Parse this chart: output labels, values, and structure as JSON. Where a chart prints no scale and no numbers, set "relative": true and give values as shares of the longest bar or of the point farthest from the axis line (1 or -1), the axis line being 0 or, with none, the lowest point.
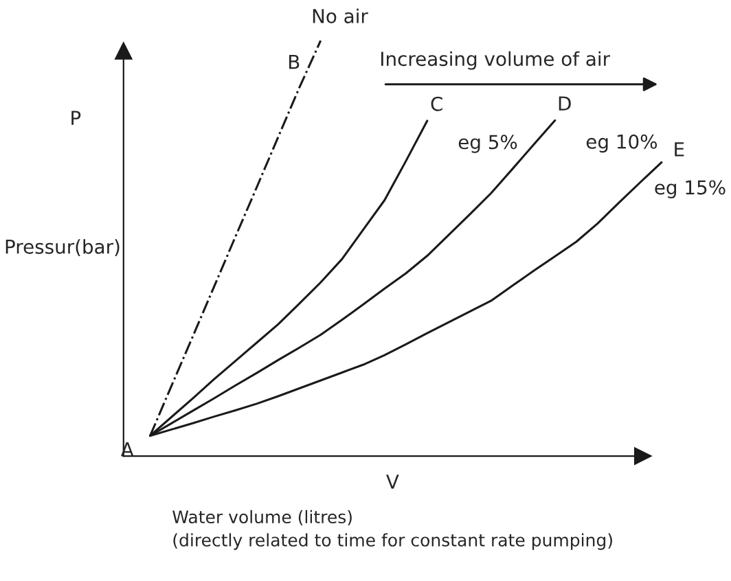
{
  "chart_data": {
    "type": "line",
    "relative": true,
    "xlabel": "V",
    "ylabel": "Pressur(bar)",
    "legend": false,
    "marker": "none",
    "categories": [
      null,
      null,
      null,
      null,
      null,
      null,
      null,
      null,
      null,
      null,
      null,
      null,
      null,
      null,
      null,
      null,
      null,
      null,
      null,
      null,
      null,
      null,
      null,
      null,
      null
    ],
    "series": [
      {
        "color": "#1a1a1a",
        "line_style": "dashdot",
        "values": [
          0.049,
          0.169,
          0.288,
          0.408,
          0.528,
          0.647,
          0.767,
          0.887,
          1.0,
          null,
          null,
          null,
          null,
          null,
          null,
          null,
          null,
          null,
          null,
          null,
          null,
          null,
          null,
          null,
          null
        ]
      },
      {
        "color": "#1a1a1a",
        "line_style": "solid",
        "values": [
          0.049,
          0.094,
          0.139,
          0.185,
          0.229,
          0.273,
          0.317,
          0.367,
          0.418,
          0.474,
          0.545,
          0.616,
          0.71,
          0.807,
          null,
          null,
          null,
          null,
          null,
          null,
          null,
          null,
          null,
          null,
          null
        ]
      },
      {
        "color": "#1a1a1a",
        "line_style": "solid",
        "values": [
          0.049,
          0.079,
          0.109,
          0.139,
          0.17,
          0.2,
          0.231,
          0.261,
          0.292,
          0.328,
          0.365,
          0.403,
          0.44,
          0.482,
          0.532,
          0.582,
          0.633,
          0.691,
          0.75,
          0.808,
          null,
          null,
          null,
          null,
          null
        ]
      },
      {
        "color": "#1a1a1a",
        "line_style": "solid",
        "values": [
          0.049,
          0.064,
          0.079,
          0.095,
          0.11,
          0.126,
          0.144,
          0.163,
          0.182,
          0.201,
          0.22,
          0.243,
          0.269,
          0.296,
          0.322,
          0.348,
          0.374,
          0.41,
          0.446,
          0.481,
          0.516,
          0.56,
          0.61,
          0.659,
          0.707
        ]
      }
    ],
    "annotations": [
      "A",
      "B",
      "No air",
      "C",
      "eg 5%",
      "D",
      "eg 10%",
      "E",
      "eg 15%",
      "P",
      "Increasing volume of air",
      "Water volume (litres)\n(directly related to time for constant rate pumping)"
    ]
  }
}
